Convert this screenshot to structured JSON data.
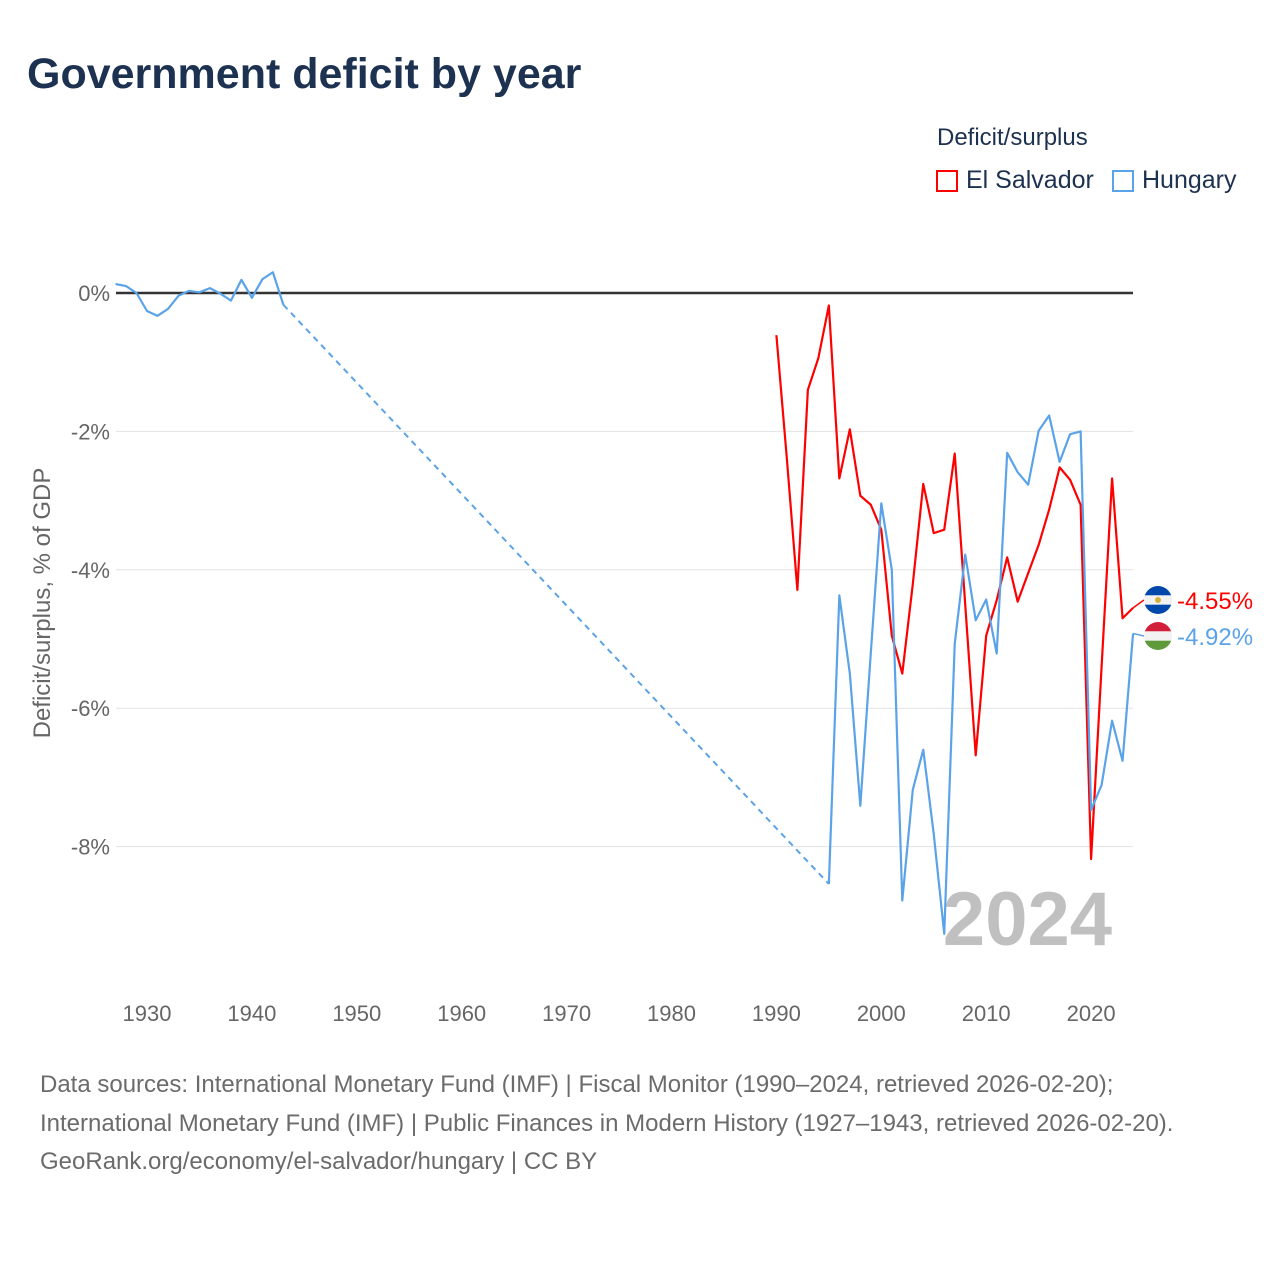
{
  "title": "Government deficit by year",
  "legend": {
    "title": "Deficit/surplus",
    "items": [
      {
        "label": "El Salvador",
        "color": "#ff0000"
      },
      {
        "label": "Hungary",
        "color": "#5ba3e8"
      }
    ]
  },
  "footer": {
    "line1": "Data sources: International Monetary Fund (IMF) | Fiscal Monitor (1990–2024, retrieved 2026-02-20); International Monetary Fund (IMF) | Public Finances in Modern History (1927–1943, retrieved 2026-02-20).",
    "line2": "GeoRank.org/economy/el-salvador/hungary | CC BY"
  },
  "chart_data": {
    "type": "line",
    "title": "Government deficit by year",
    "ylabel": "Deficit/surplus, % of GDP",
    "xlabel": "",
    "xlim": [
      1927,
      2024
    ],
    "ylim": [
      -9.9,
      1.2
    ],
    "yticks": [
      {
        "v": 0,
        "label": "0%"
      },
      {
        "v": -2,
        "label": "-2%"
      },
      {
        "v": -4,
        "label": "-4%"
      },
      {
        "v": -6,
        "label": "-6%"
      },
      {
        "v": -8,
        "label": "-8%"
      }
    ],
    "xticks": [
      1930,
      1940,
      1950,
      1960,
      1970,
      1980,
      1990,
      2000,
      2010,
      2020
    ],
    "year_watermark": "2024",
    "series": [
      {
        "name": "El Salvador",
        "color": "#ff0000",
        "end_label": "-4.55%",
        "flag": "el-salvador",
        "x": [
          1990,
          1991,
          1992,
          1993,
          1994,
          1995,
          1996,
          1997,
          1998,
          1999,
          2000,
          2001,
          2002,
          2003,
          2004,
          2005,
          2006,
          2007,
          2008,
          2009,
          2010,
          2011,
          2012,
          2013,
          2014,
          2015,
          2016,
          2017,
          2018,
          2019,
          2020,
          2021,
          2022,
          2023,
          2024
        ],
        "y": [
          -0.61,
          -2.4,
          -4.29,
          -1.4,
          -0.94,
          -0.18,
          -2.68,
          -1.97,
          -2.93,
          -3.06,
          -3.42,
          -4.95,
          -5.5,
          -4.21,
          -2.76,
          -3.47,
          -3.42,
          -2.32,
          -4.5,
          -6.68,
          -4.95,
          -4.44,
          -3.82,
          -4.46,
          -4.05,
          -3.64,
          -3.13,
          -2.52,
          -2.7,
          -3.06,
          -8.18,
          -5.4,
          -2.68,
          -4.7,
          -4.55
        ]
      },
      {
        "name": "Hungary",
        "color": "#5ba3e8",
        "end_label": "-4.92%",
        "flag": "hungary",
        "x": [
          1927,
          1928,
          1929,
          1930,
          1931,
          1932,
          1933,
          1934,
          1935,
          1936,
          1937,
          1938,
          1939,
          1940,
          1941,
          1942,
          1943,
          1995,
          1996,
          1997,
          1998,
          1999,
          2000,
          2001,
          2002,
          2003,
          2004,
          2005,
          2006,
          2007,
          2008,
          2009,
          2010,
          2011,
          2012,
          2013,
          2014,
          2015,
          2016,
          2017,
          2018,
          2019,
          2020,
          2021,
          2022,
          2023,
          2024
        ],
        "y": [
          0.13,
          0.1,
          0.0,
          -0.26,
          -0.33,
          -0.23,
          -0.04,
          0.03,
          0.01,
          0.07,
          -0.01,
          -0.11,
          0.19,
          -0.07,
          0.2,
          0.3,
          -0.17,
          -8.54,
          -4.37,
          -5.5,
          -7.41,
          -5.2,
          -3.04,
          -4.0,
          -8.78,
          -7.18,
          -6.6,
          -7.82,
          -9.26,
          -5.07,
          -3.78,
          -4.73,
          -4.43,
          -5.21,
          -2.31,
          -2.59,
          -2.77,
          -1.99,
          -1.77,
          -2.44,
          -2.04,
          -2.0,
          -7.47,
          -7.11,
          -6.18,
          -6.76,
          -4.92
        ]
      }
    ]
  }
}
